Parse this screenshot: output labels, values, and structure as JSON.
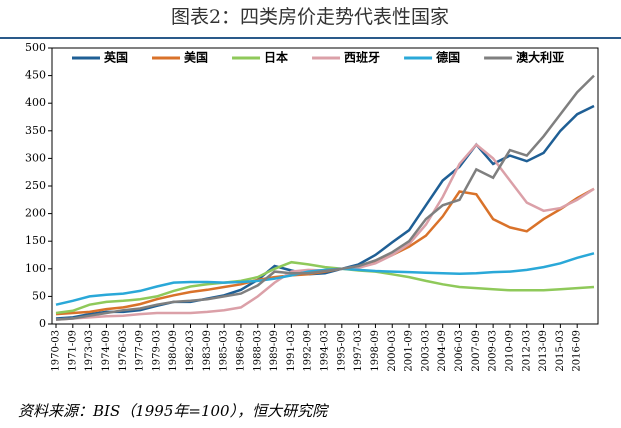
{
  "chart_data": {
    "type": "line",
    "title": "图表2：四类房价走势代表性国家",
    "source": "资料来源：BIS（1995年=100），恒大研究院",
    "categories": [
      "1970-03",
      "1971-09",
      "1973-03",
      "1974-09",
      "1976-03",
      "1977-09",
      "1979-03",
      "1980-09",
      "1982-03",
      "1983-09",
      "1985-03",
      "1986-09",
      "1988-03",
      "1989-09",
      "1991-03",
      "1992-09",
      "1994-03",
      "1995-09",
      "1997-03",
      "1998-09",
      "2000-03",
      "2001-09",
      "2003-03",
      "2004-09",
      "2006-03",
      "2007-09",
      "2009-03",
      "2010-09",
      "2012-03",
      "2013-09",
      "2015-03",
      "2016-09",
      null
    ],
    "series": [
      {
        "name": "英国",
        "color": "#1f5f95",
        "values": [
          10,
          12,
          18,
          22,
          22,
          25,
          33,
          40,
          40,
          46,
          52,
          62,
          80,
          105,
          97,
          90,
          92,
          100,
          108,
          125,
          148,
          170,
          215,
          260,
          285,
          325,
          290,
          305,
          295,
          310,
          350,
          380,
          395
        ]
      },
      {
        "name": "美国",
        "color": "#d9722a",
        "values": [
          18,
          20,
          22,
          27,
          30,
          36,
          45,
          52,
          58,
          62,
          67,
          72,
          80,
          85,
          88,
          90,
          95,
          100,
          104,
          112,
          125,
          140,
          160,
          195,
          240,
          235,
          190,
          175,
          168,
          190,
          208,
          228,
          245
        ]
      },
      {
        "name": "日本",
        "color": "#8fc95a",
        "values": [
          20,
          24,
          35,
          40,
          42,
          45,
          50,
          60,
          68,
          72,
          75,
          78,
          85,
          100,
          112,
          108,
          103,
          100,
          97,
          95,
          90,
          85,
          78,
          72,
          67,
          65,
          63,
          61,
          61,
          61,
          63,
          65,
          67
        ]
      },
      {
        "name": "西班牙",
        "color": "#dba0a8",
        "values": [
          8,
          10,
          12,
          14,
          15,
          18,
          20,
          20,
          20,
          22,
          25,
          30,
          50,
          75,
          95,
          98,
          97,
          100,
          102,
          110,
          125,
          145,
          180,
          230,
          290,
          325,
          300,
          260,
          220,
          205,
          210,
          225,
          245
        ]
      },
      {
        "name": "德国",
        "color": "#2aa8d8",
        "values": [
          35,
          42,
          50,
          53,
          55,
          60,
          68,
          75,
          76,
          76,
          75,
          76,
          78,
          82,
          88,
          95,
          98,
          100,
          98,
          96,
          95,
          94,
          93,
          92,
          91,
          92,
          94,
          95,
          98,
          103,
          110,
          120,
          128
        ]
      },
      {
        "name": "澳大利亚",
        "color": "#7f7f7f",
        "values": [
          8,
          10,
          15,
          20,
          25,
          28,
          35,
          40,
          42,
          45,
          50,
          55,
          70,
          95,
          92,
          92,
          96,
          100,
          105,
          115,
          130,
          150,
          190,
          215,
          225,
          280,
          265,
          315,
          305,
          340,
          380,
          420,
          450
        ]
      }
    ],
    "ylim": [
      0,
      500
    ],
    "yticks": [
      0,
      50,
      100,
      150,
      200,
      250,
      300,
      350,
      400,
      450,
      500
    ]
  }
}
